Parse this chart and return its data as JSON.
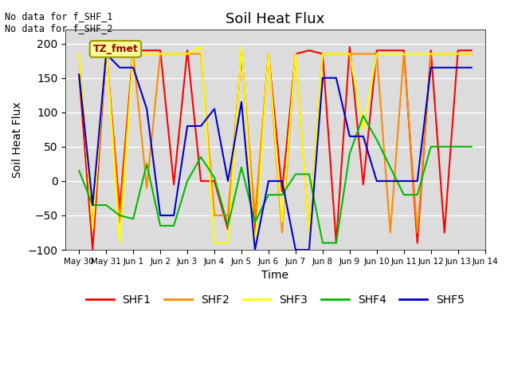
{
  "title": "Soil Heat Flux",
  "ylabel": "Soil Heat Flux",
  "xlabel": "Time",
  "ylim": [
    -100,
    220
  ],
  "yticks": [
    -100,
    -50,
    0,
    50,
    100,
    150,
    200
  ],
  "annotation_text": "No data for f_SHF_1\nNo data for f_SHF_2",
  "box_label": "TZ_fmet",
  "box_color": "#FFFF99",
  "box_edge_color": "#999900",
  "box_text_color": "#990000",
  "bg_color": "#DCDCDC",
  "series_colors": {
    "SHF1": "#FF0000",
    "SHF2": "#FF8C00",
    "SHF3": "#FFFF00",
    "SHF4": "#00BB00",
    "SHF5": "#0000CC"
  },
  "x_tick_labels": [
    "May 30",
    "May 31",
    "Jun 1",
    "Jun 2",
    "Jun 3",
    "Jun 4",
    "Jun 5",
    "Jun 6",
    "Jun 7",
    "Jun 8",
    "Jun 9",
    "Jun 10",
    "Jun 11",
    "Jun 12",
    "Jun 13",
    "Jun 14"
  ],
  "x_tick_positions": [
    0,
    2,
    4,
    6,
    8,
    10,
    12,
    14,
    16,
    18,
    20,
    22,
    24,
    26,
    28,
    30
  ],
  "SHF1": [
    155,
    -100,
    190,
    -40,
    190,
    190,
    190,
    -5,
    190,
    0,
    0,
    -70,
    190,
    -75,
    185,
    -15,
    185,
    190,
    185,
    -90,
    195,
    -5,
    190,
    190,
    190,
    -90,
    190,
    -75,
    190,
    190
  ],
  "SHF2": [
    185,
    -70,
    195,
    -60,
    185,
    -10,
    185,
    185,
    185,
    185,
    -50,
    -50,
    185,
    -50,
    185,
    -75,
    185,
    -75,
    185,
    185,
    185,
    185,
    185,
    -75,
    185,
    -75,
    185,
    185,
    185,
    185
  ],
  "SHF3": [
    185,
    -70,
    195,
    -90,
    185,
    185,
    185,
    185,
    185,
    195,
    -90,
    -90,
    195,
    -95,
    185,
    -60,
    185,
    -75,
    185,
    185,
    185,
    75,
    185,
    185,
    185,
    185,
    185,
    185,
    185,
    185
  ],
  "SHF4": [
    15,
    -35,
    -35,
    -50,
    -55,
    25,
    -65,
    -65,
    0,
    35,
    5,
    -65,
    20,
    -60,
    -20,
    -20,
    10,
    10,
    -90,
    -90,
    40,
    95,
    60,
    20,
    -20,
    -20,
    50,
    50,
    50,
    50
  ],
  "SHF5": [
    155,
    -35,
    185,
    165,
    165,
    105,
    -50,
    -50,
    80,
    80,
    105,
    0,
    115,
    -100,
    0,
    0,
    -100,
    -100,
    150,
    150,
    65,
    65,
    0,
    0,
    0,
    0,
    165,
    165,
    165,
    165
  ]
}
